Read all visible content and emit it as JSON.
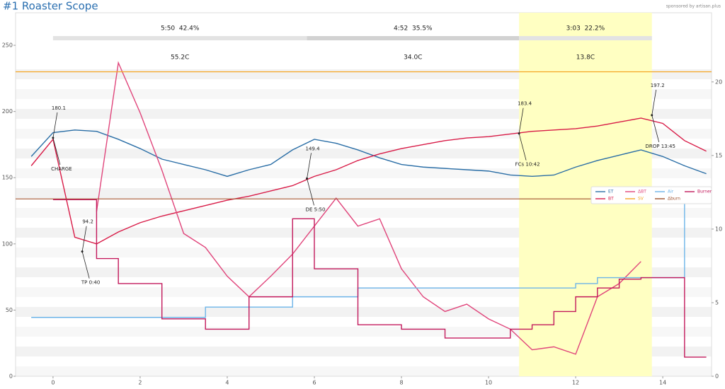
{
  "chart_data": {
    "type": "line",
    "title": "#1 Roaster Scope",
    "subtitle": "sponsored by artisan.plus",
    "x": [
      -0.5,
      0,
      0.5,
      1,
      1.5,
      2,
      2.5,
      3,
      3.5,
      4,
      4.5,
      5,
      5.5,
      6,
      6.5,
      7,
      7.5,
      8,
      8.5,
      9,
      9.5,
      10,
      10.5,
      11,
      11.5,
      12,
      12.5,
      13,
      13.5,
      14,
      14.5,
      15
    ],
    "xlim": [
      -0.86,
      15.12
    ],
    "xticks": [
      0,
      2,
      4,
      6,
      8,
      10,
      12,
      14
    ],
    "ylim": [
      0,
      274.6
    ],
    "yticks": [
      0,
      50,
      100,
      150,
      200,
      250
    ],
    "y2lim": [
      0,
      24.7
    ],
    "y2ticks": [
      0,
      5,
      10,
      15,
      20
    ],
    "legend": "upper right",
    "series": [
      {
        "name": "ET",
        "color": "#2a6ea6",
        "values": [
          166,
          184,
          186,
          185,
          179,
          172,
          164,
          160,
          156,
          151,
          156,
          160,
          171,
          179,
          176,
          171,
          165,
          160,
          158,
          157,
          156,
          155,
          152,
          151,
          152,
          158,
          163,
          167,
          171,
          166,
          159,
          153
        ]
      },
      {
        "name": "BT",
        "color": "#d81b47",
        "values": [
          159,
          179,
          105,
          100,
          109,
          116,
          121,
          125,
          129,
          133,
          136,
          140,
          144,
          151,
          156,
          163,
          168,
          172,
          175,
          178,
          180,
          181,
          183,
          185,
          186,
          187,
          189,
          192,
          195,
          191,
          178,
          170
        ]
      },
      {
        "name": "ΔBT",
        "color": "#e0457b",
        "axis": "y2",
        "values": [
          null,
          null,
          null,
          11.2,
          21.3,
          17.9,
          14,
          9.7,
          8.75,
          6.8,
          5.4,
          6.8,
          8.3,
          10.2,
          12.1,
          10.2,
          10.7,
          7.3,
          5.4,
          4.4,
          4.9,
          3.9,
          3.2,
          1.8,
          2,
          1.5,
          5.4,
          6.3,
          7.8,
          null,
          null,
          null
        ]
      },
      {
        "name": "SV",
        "color": "#f5a623",
        "value": 230
      },
      {
        "name": "Air",
        "color": "#6cb4e8",
        "axis": "y2",
        "step": true,
        "values": [
          4,
          4,
          4,
          4,
          4,
          4,
          4,
          4,
          4.7,
          4.7,
          4.7,
          4.7,
          5.4,
          5.4,
          5.4,
          6,
          6,
          6,
          6,
          6,
          6,
          6,
          6,
          6,
          6,
          6.3,
          6.7,
          6.7,
          6.7,
          6.7,
          12,
          null
        ]
      },
      {
        "name": "Δburn",
        "color": "#a0522d",
        "value": 134
      },
      {
        "name": "Burner",
        "color": "#c2185b",
        "axis": "y2",
        "step": true,
        "values": [
          null,
          12,
          12,
          8,
          6.3,
          6.3,
          3.9,
          3.9,
          3.2,
          3.2,
          5.4,
          5.4,
          10.7,
          7.3,
          7.3,
          3.5,
          3.5,
          3.2,
          3.2,
          2.6,
          2.6,
          2.6,
          3.2,
          3.5,
          4.4,
          5.4,
          6,
          6.6,
          6.7,
          6.7,
          1.3,
          1.3
        ]
      }
    ],
    "phases": [
      {
        "start": 0,
        "end": 5.83,
        "time": "5:50  42.4%",
        "delta": "55.2C"
      },
      {
        "start": 5.83,
        "end": 10.7,
        "time": "4:52  35.5%",
        "delta": "34.0C"
      },
      {
        "start": 10.7,
        "end": 13.75,
        "time": "3:03  22.2%",
        "delta": "13.8C",
        "color": "#ffffc2"
      }
    ],
    "annotations": [
      {
        "x": 0,
        "y": 180.1,
        "label": "CHARGE"
      },
      {
        "x": 0.67,
        "y": 94.2,
        "label": "TP 0:40"
      },
      {
        "x": 5.83,
        "y": 149.4,
        "label": "DE 5:50"
      },
      {
        "x": 10.7,
        "y": 183.4,
        "label": "FCs 10:42"
      },
      {
        "x": 13.75,
        "y": 197.2,
        "label": "DROP 13:45"
      }
    ]
  }
}
